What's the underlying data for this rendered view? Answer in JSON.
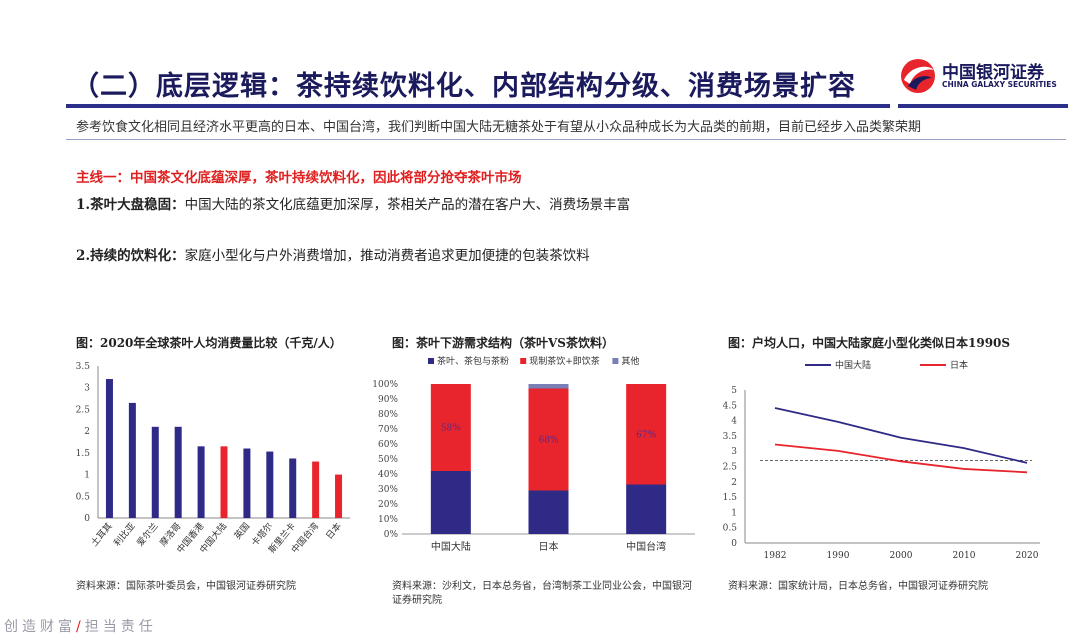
{
  "header": {
    "title": "（二）底层逻辑：茶持续饮料化、内部结构分级、消费场景扩容",
    "logo_cn": "中国银河证券",
    "logo_en": "CHINA GALAXY SECURITIES"
  },
  "intro": "参考饮食文化相同且经济水平更高的日本、中国台湾，我们判断中国大陆无糖茶处于有望从小众品种成长为大品类的前期，目前已经步入品类繁荣期",
  "mainline": "主线一：中国茶文化底蕴深厚，茶叶持续饮料化，因此将部分抢夺茶叶市场",
  "points": [
    {
      "head": "1.茶叶大盘稳固：",
      "body": "中国大陆的茶文化底蕴更加深厚，茶相关产品的潜在客户大、消费场景丰富"
    },
    {
      "head": "2.持续的饮料化：",
      "body": "家庭小型化与户外消费增加，推动消费者追求更加便捷的包装茶饮料"
    }
  ],
  "charts": {
    "c1_title": "图：2020年全球茶叶人均消费量比较（千克/人）",
    "c1_source": "资料来源：国际茶叶委员会，中国银河证券研究院",
    "c2_title": "图：茶叶下游需求结构（茶叶VS茶饮料）",
    "c2_source": "资料来源：沙利文，日本总务省，台湾制茶工业同业公会，中国银河证券研究院",
    "c3_title": "图：户均人口，中国大陆家庭小型化类似日本1990S",
    "c3_source": "资料来源：国家统计局，日本总务省，中国银河证券研究院"
  },
  "footer": {
    "left": "创造财富",
    "slash": "/",
    "right": "担当责任"
  },
  "colors": {
    "navy": "#2e2a86",
    "red": "#e8242c",
    "gray": "#7b7fb8",
    "title": "#1a1a5c"
  },
  "chart_data": [
    {
      "type": "bar",
      "categories": [
        "土耳其",
        "利比亚",
        "爱尔兰",
        "摩洛哥",
        "中国香港",
        "中国大陆",
        "英国",
        "卡塔尔",
        "斯里兰卡",
        "中国台湾",
        "日本"
      ],
      "values": [
        3.2,
        2.65,
        2.1,
        2.1,
        1.65,
        1.65,
        1.6,
        1.53,
        1.37,
        1.3,
        1.0
      ],
      "highlight": [
        "中国大陆",
        "中国台湾",
        "日本"
      ],
      "ylim": [
        0,
        3.5
      ],
      "yticks": [
        "0",
        "0.5",
        "1",
        "1.5",
        "2",
        "2.5",
        "3",
        "3.5"
      ]
    },
    {
      "type": "bar",
      "stacked": true,
      "categories": [
        "中国大陆",
        "日本",
        "中国台湾"
      ],
      "series": [
        {
          "name": "茶叶、茶包与茶粉",
          "values": [
            42,
            29,
            33
          ],
          "color": "#2e2a86"
        },
        {
          "name": "现制茶饮+即饮茶",
          "values": [
            58,
            68,
            67
          ],
          "color": "#e8242c"
        },
        {
          "name": "其他",
          "values": [
            0,
            3,
            0
          ],
          "color": "#7b7fb8"
        }
      ],
      "labels": [
        "58%",
        "68%",
        "67%"
      ],
      "ylim": [
        0,
        100
      ],
      "yticks": [
        "0%",
        "10%",
        "20%",
        "30%",
        "40%",
        "50%",
        "60%",
        "70%",
        "80%",
        "90%",
        "100%"
      ]
    },
    {
      "type": "line",
      "x": [
        "1982",
        "1990",
        "2000",
        "2010",
        "2020"
      ],
      "series": [
        {
          "name": "中国大陆",
          "values": [
            4.41,
            3.96,
            3.44,
            3.1,
            2.62
          ],
          "color": "#2e2a86"
        },
        {
          "name": "日本",
          "values": [
            3.22,
            3.01,
            2.67,
            2.42,
            2.31
          ],
          "color": "#e8242c"
        }
      ],
      "reference_line": 2.7,
      "ylim": [
        0,
        5
      ],
      "yticks": [
        "0",
        "0.5",
        "1",
        "1.5",
        "2",
        "2.5",
        "3",
        "3.5",
        "4",
        "4.5",
        "5"
      ]
    }
  ]
}
